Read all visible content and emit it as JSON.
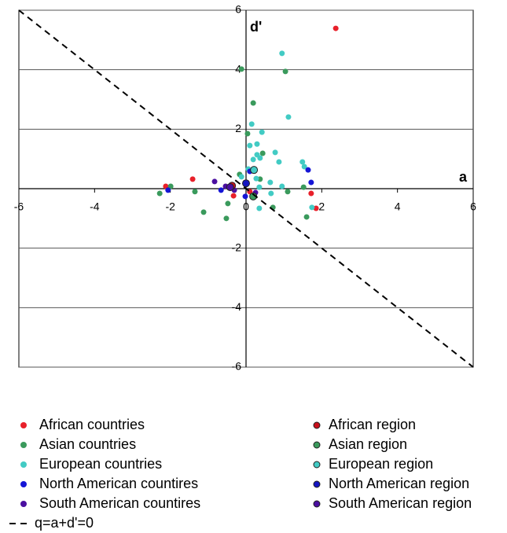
{
  "chart_data": {
    "type": "scatter",
    "x_label": "a",
    "y_label": "d'",
    "xlim": [
      -6,
      6
    ],
    "ylim": [
      -6,
      6
    ],
    "xticks": [
      -6,
      -4,
      -2,
      0,
      2,
      4,
      6
    ],
    "yticks": [
      -6,
      -4,
      -2,
      2,
      4,
      6
    ],
    "grid": true,
    "series": [
      {
        "name": "African countries",
        "color": "#e8202a",
        "x": [
          2.37,
          -1.41,
          -2.12,
          -0.33,
          1.72,
          1.85,
          0.1
        ],
        "y": [
          5.39,
          0.32,
          0.08,
          -0.24,
          -0.16,
          -0.66,
          -0.1
        ]
      },
      {
        "name": "Asian countries",
        "color": "#3a9a5c",
        "x": [
          -0.12,
          1.04,
          0.19,
          0.04,
          0.44,
          -2.28,
          -1.99,
          -1.35,
          -1.12,
          -0.52,
          -0.48,
          0.71,
          1.1,
          1.52,
          1.6,
          0.37,
          -0.17
        ],
        "y": [
          4.02,
          3.94,
          2.88,
          1.85,
          1.19,
          -0.16,
          0.08,
          -0.1,
          -0.79,
          -1.0,
          -0.5,
          -0.63,
          -0.1,
          0.05,
          -0.95,
          0.32,
          0.48
        ]
      },
      {
        "name": "European countries",
        "color": "#42cbc4",
        "x": [
          0.95,
          1.12,
          0.15,
          0.42,
          0.1,
          0.29,
          0.29,
          0.37,
          0.19,
          0.77,
          0.87,
          1.49,
          1.54,
          0.64,
          0.66,
          0.35,
          0.35,
          -0.12,
          0.06,
          0.95,
          1.74,
          0.27
        ],
        "y": [
          4.55,
          2.41,
          2.17,
          1.9,
          1.45,
          1.5,
          1.14,
          1.03,
          0.98,
          1.22,
          0.9,
          0.9,
          0.74,
          0.21,
          -0.16,
          0.05,
          -0.66,
          0.4,
          0.66,
          0.08,
          -0.63,
          0.34
        ]
      },
      {
        "name": "North American countires",
        "color": "#1515d6",
        "x": [
          1.64,
          1.72,
          -2.06,
          -0.66,
          0.1,
          -0.02
        ],
        "y": [
          0.63,
          0.21,
          -0.05,
          -0.05,
          0.58,
          -0.26
        ]
      },
      {
        "name": "South American countires",
        "color": "#4a0fa0",
        "x": [
          -0.83,
          -0.54,
          0.25,
          -0.31
        ],
        "y": [
          0.24,
          0.08,
          -0.13,
          -0.05
        ]
      },
      {
        "name": "African region",
        "color": "#c8101c",
        "edgecolor": "#222",
        "x": [
          -0.37
        ],
        "y": [
          0.1
        ]
      },
      {
        "name": "Asian region",
        "color": "#3a9a5c",
        "edgecolor": "#222",
        "x": [
          0.19
        ],
        "y": [
          -0.26
        ]
      },
      {
        "name": "European region",
        "color": "#42cbc4",
        "edgecolor": "#222",
        "x": [
          0.21
        ],
        "y": [
          0.63
        ]
      },
      {
        "name": "North American region",
        "color": "#1515c0",
        "edgecolor": "#222",
        "x": [
          0
        ],
        "y": [
          0.18
        ]
      },
      {
        "name": "South American region",
        "color": "#4a0fa0",
        "edgecolor": "#222",
        "x": [
          -0.42
        ],
        "y": [
          0.05
        ]
      },
      {
        "name": "q=a+d'=0",
        "type": "line",
        "style": "dashed",
        "color": "#000",
        "x": [
          -6,
          6
        ],
        "y": [
          6,
          -6
        ]
      }
    ]
  }
}
